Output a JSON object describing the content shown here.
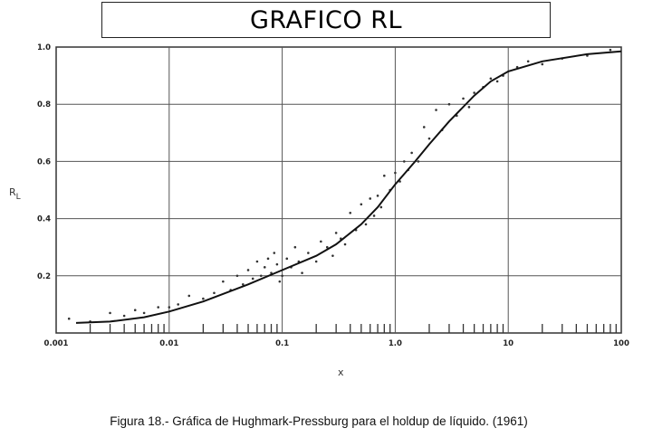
{
  "header": {
    "title": "GRAFICO RL"
  },
  "caption": "Figura 18.- Gráfica de Hughmark-Pressburg para el holdup de líquido. (1961)",
  "chart_data": {
    "type": "scatter",
    "xscale": "log",
    "xlim": [
      0.001,
      100
    ],
    "ylim": [
      0,
      1.0
    ],
    "xlabel": "x",
    "ylabel": "R",
    "ylabel_sub": "L",
    "grid": true,
    "x_tick_labels": [
      "0.001",
      "0.01",
      "0.1",
      "1.0",
      "10",
      "100"
    ],
    "x_ticks": [
      0.001,
      0.01,
      0.1,
      1.0,
      10,
      100
    ],
    "y_tick_labels": [
      "0.2",
      "0.4",
      "0.6",
      "0.8",
      "1.0"
    ],
    "y_ticks": [
      0.2,
      0.4,
      0.6,
      0.8,
      1.0
    ],
    "colors": {
      "line": "#111111",
      "points": "#333333",
      "grid": "#555555"
    },
    "series": [
      {
        "type": "line",
        "x": [
          0.0015,
          0.003,
          0.006,
          0.01,
          0.02,
          0.05,
          0.1,
          0.2,
          0.3,
          0.5,
          0.7,
          1.0,
          1.5,
          2,
          3,
          5,
          7,
          10,
          20,
          50,
          100
        ],
        "y": [
          0.035,
          0.04,
          0.055,
          0.075,
          0.11,
          0.17,
          0.22,
          0.27,
          0.31,
          0.38,
          0.44,
          0.52,
          0.6,
          0.66,
          0.74,
          0.83,
          0.88,
          0.915,
          0.95,
          0.975,
          0.985
        ]
      },
      {
        "type": "scatter",
        "x": [
          0.0013,
          0.002,
          0.003,
          0.004,
          0.005,
          0.006,
          0.008,
          0.01,
          0.012,
          0.015,
          0.02,
          0.025,
          0.03,
          0.035,
          0.04,
          0.045,
          0.05,
          0.055,
          0.06,
          0.065,
          0.07,
          0.075,
          0.08,
          0.085,
          0.09,
          0.095,
          0.1,
          0.11,
          0.12,
          0.13,
          0.14,
          0.15,
          0.17,
          0.2,
          0.22,
          0.25,
          0.28,
          0.3,
          0.33,
          0.36,
          0.4,
          0.45,
          0.5,
          0.55,
          0.6,
          0.65,
          0.7,
          0.75,
          0.8,
          0.9,
          1.0,
          1.1,
          1.2,
          1.3,
          1.4,
          1.6,
          1.8,
          2.0,
          2.3,
          2.6,
          3.0,
          3.5,
          4.0,
          4.5,
          5.0,
          6.0,
          7.0,
          8.0,
          9.0,
          12,
          15,
          20,
          30,
          50,
          80
        ],
        "y": [
          0.05,
          0.04,
          0.07,
          0.06,
          0.08,
          0.07,
          0.09,
          0.09,
          0.1,
          0.13,
          0.12,
          0.14,
          0.18,
          0.15,
          0.2,
          0.17,
          0.22,
          0.19,
          0.25,
          0.2,
          0.23,
          0.26,
          0.21,
          0.28,
          0.24,
          0.18,
          0.2,
          0.26,
          0.23,
          0.3,
          0.25,
          0.21,
          0.28,
          0.25,
          0.32,
          0.3,
          0.27,
          0.35,
          0.33,
          0.31,
          0.42,
          0.36,
          0.45,
          0.38,
          0.47,
          0.41,
          0.48,
          0.44,
          0.55,
          0.5,
          0.56,
          0.53,
          0.6,
          0.57,
          0.63,
          0.6,
          0.72,
          0.68,
          0.78,
          0.71,
          0.8,
          0.76,
          0.82,
          0.79,
          0.84,
          0.86,
          0.89,
          0.88,
          0.9,
          0.93,
          0.95,
          0.94,
          0.96,
          0.97,
          0.99
        ]
      }
    ]
  }
}
